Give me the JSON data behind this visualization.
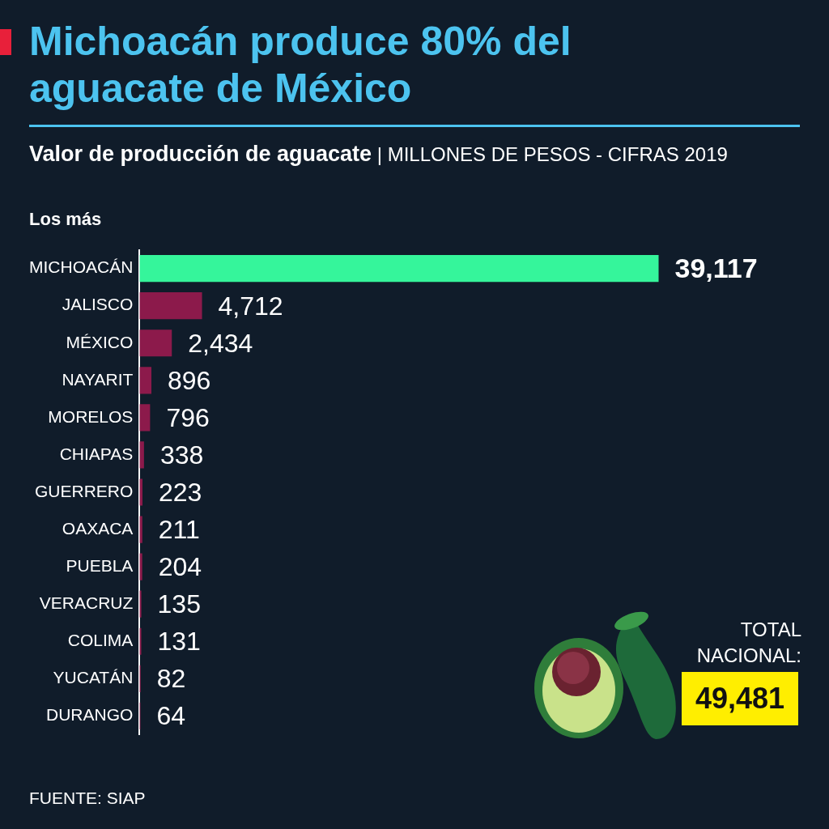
{
  "chart_data": {
    "type": "bar",
    "orientation": "horizontal",
    "title": "Michoacán produce 80% del aguacate de México",
    "subtitle": "Valor de producción de aguacate | MILLONES DE PESOS - CIFRAS 2019",
    "categories": [
      "MICHOACÁN",
      "JALISCO",
      "MÉXICO",
      "NAYARIT",
      "MORELOS",
      "CHIAPAS",
      "GUERRERO",
      "OAXACA",
      "PUEBLA",
      "VERACRUZ",
      "COLIMA",
      "YUCATÁN",
      "DURANGO"
    ],
    "values": [
      39117,
      4712,
      2434,
      896,
      796,
      338,
      223,
      211,
      204,
      135,
      131,
      82,
      64
    ],
    "colors": [
      "#35f59b",
      "#8c1a4b",
      "#8c1a4b",
      "#8c1a4b",
      "#8c1a4b",
      "#8c1a4b",
      "#8c1a4b",
      "#8c1a4b",
      "#8c1a4b",
      "#8c1a4b",
      "#8c1a4b",
      "#8c1a4b",
      "#8c1a4b"
    ],
    "value_labels": [
      "39,117",
      "4,712",
      "2,434",
      "896",
      "796",
      "338",
      "223",
      "211",
      "204",
      "135",
      "131",
      "82",
      "64"
    ],
    "legend": false,
    "tick_labels": "y",
    "annotations": [
      "Los más",
      "FUENTE: SIAP",
      "TOTAL NACIONAL:",
      "49,481"
    ]
  }
}
